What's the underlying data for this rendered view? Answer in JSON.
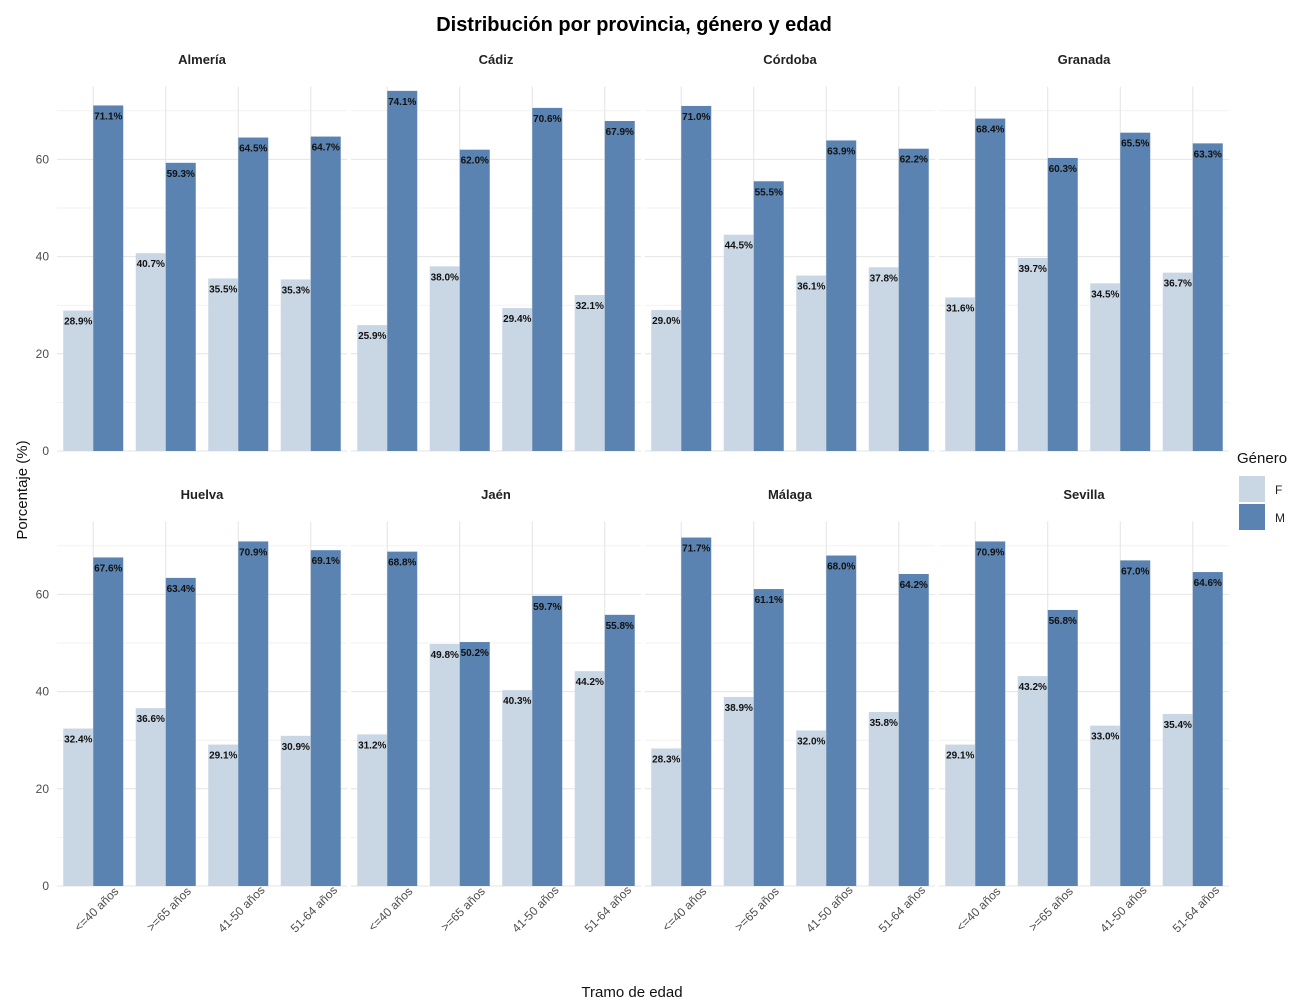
{
  "chart_data": {
    "type": "bar",
    "title": "Distribución por provincia, género y edad",
    "xlabel": "Tramo de edad",
    "ylabel": "Porcentaje (%)",
    "ylim": [
      0,
      75
    ],
    "yticks": [
      0,
      20,
      40,
      60
    ],
    "grid": true,
    "legend_placement": "right",
    "legend_title": "Género",
    "categories": [
      "<=40 años",
      ">=65 años",
      "41-50 años",
      "51-64 años"
    ],
    "series_colors": {
      "F": "#c9d6e4",
      "M": "#5b83b2"
    },
    "panels": [
      {
        "name": "Almería",
        "F": [
          28.9,
          40.7,
          35.5,
          35.3
        ],
        "M": [
          71.1,
          59.3,
          64.5,
          64.7
        ],
        "F_labels": [
          "28.9%",
          "40.7%",
          "35.5%",
          "35.3%"
        ],
        "M_labels": [
          "71.1%",
          "59.3%",
          "64.5%",
          "64.7%"
        ]
      },
      {
        "name": "Cádiz",
        "F": [
          25.9,
          38.0,
          29.4,
          32.1
        ],
        "M": [
          74.1,
          62.0,
          70.6,
          67.9
        ],
        "F_labels": [
          "25.9%",
          "38.0%",
          "29.4%",
          "32.1%"
        ],
        "M_labels": [
          "74.1%",
          "62.0%",
          "70.6%",
          "67.9%"
        ]
      },
      {
        "name": "Córdoba",
        "F": [
          29.0,
          44.5,
          36.1,
          37.8
        ],
        "M": [
          71.0,
          55.5,
          63.9,
          62.2
        ],
        "F_labels": [
          "29.0%",
          "44.5%",
          "36.1%",
          "37.8%"
        ],
        "M_labels": [
          "71.0%",
          "55.5%",
          "63.9%",
          "62.2%"
        ]
      },
      {
        "name": "Granada",
        "F": [
          31.6,
          39.7,
          34.5,
          36.7
        ],
        "M": [
          68.4,
          60.3,
          65.5,
          63.3
        ],
        "F_labels": [
          "31.6%",
          "39.7%",
          "34.5%",
          "36.7%"
        ],
        "M_labels": [
          "68.4%",
          "60.3%",
          "65.5%",
          "63.3%"
        ]
      },
      {
        "name": "Huelva",
        "F": [
          32.4,
          36.6,
          29.1,
          30.9
        ],
        "M": [
          67.6,
          63.4,
          70.9,
          69.1
        ],
        "F_labels": [
          "32.4%",
          "36.6%",
          "29.1%",
          "30.9%"
        ],
        "M_labels": [
          "67.6%",
          "63.4%",
          "70.9%",
          "69.1%"
        ]
      },
      {
        "name": "Jaén",
        "F": [
          31.2,
          49.8,
          40.3,
          44.2
        ],
        "M": [
          68.8,
          50.2,
          59.7,
          55.8
        ],
        "F_labels": [
          "31.2%",
          "49.8%",
          "40.3%",
          "44.2%"
        ],
        "M_labels": [
          "68.8%",
          "50.2%",
          "59.7%",
          "55.8%"
        ]
      },
      {
        "name": "Málaga",
        "F": [
          28.3,
          38.9,
          32.0,
          35.8
        ],
        "M": [
          71.7,
          61.1,
          68.0,
          64.2
        ],
        "F_labels": [
          "28.3%",
          "38.9%",
          "32.0%",
          "35.8%"
        ],
        "M_labels": [
          "71.7%",
          "61.1%",
          "68.0%",
          "64.2%"
        ]
      },
      {
        "name": "Sevilla",
        "F": [
          29.1,
          43.2,
          33.0,
          35.4
        ],
        "M": [
          70.9,
          56.8,
          67.0,
          64.6
        ],
        "F_labels": [
          "29.1%",
          "43.2%",
          "33.0%",
          "35.4%"
        ],
        "M_labels": [
          "70.9%",
          "56.8%",
          "67.0%",
          "64.6%"
        ]
      }
    ]
  },
  "legend": {
    "title": "Género",
    "items": [
      {
        "label": "F",
        "color": "#c9d6e4"
      },
      {
        "label": "M",
        "color": "#5b83b2"
      }
    ]
  }
}
